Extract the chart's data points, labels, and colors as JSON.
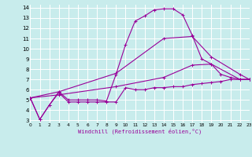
{
  "xlabel": "Windchill (Refroidissement éolien,°C)",
  "xlim": [
    0,
    23
  ],
  "ylim": [
    2.8,
    14.3
  ],
  "yticks": [
    3,
    4,
    5,
    6,
    7,
    8,
    9,
    10,
    11,
    12,
    13,
    14
  ],
  "xticks": [
    0,
    1,
    2,
    3,
    4,
    5,
    6,
    7,
    8,
    9,
    10,
    11,
    12,
    13,
    14,
    15,
    16,
    17,
    18,
    19,
    20,
    21,
    22,
    23
  ],
  "bg_color": "#c8ecec",
  "line_color": "#990099",
  "grid_color": "#ffffff",
  "lines": [
    {
      "x": [
        0,
        1,
        2,
        3,
        4,
        5,
        6,
        7,
        8,
        9,
        10,
        11,
        12,
        13,
        14,
        15,
        16,
        17,
        18,
        19,
        20,
        21,
        22,
        23
      ],
      "y": [
        5.2,
        3.1,
        4.5,
        5.7,
        4.8,
        4.8,
        4.8,
        4.8,
        4.8,
        4.8,
        6.2,
        6.0,
        6.0,
        6.2,
        6.2,
        6.3,
        6.3,
        6.5,
        6.6,
        6.7,
        6.8,
        7.0,
        7.0,
        7.0
      ]
    },
    {
      "x": [
        0,
        1,
        2,
        3,
        4,
        5,
        6,
        7,
        8,
        9,
        10,
        11,
        12,
        13,
        14,
        15,
        16,
        17,
        18,
        19,
        20,
        21,
        22,
        23
      ],
      "y": [
        5.2,
        3.1,
        4.5,
        5.8,
        5.0,
        5.0,
        5.0,
        5.0,
        4.9,
        7.5,
        10.4,
        12.7,
        13.2,
        13.8,
        13.9,
        13.9,
        13.3,
        11.3,
        9.0,
        8.5,
        7.5,
        7.2,
        7.0,
        7.0
      ]
    },
    {
      "x": [
        0,
        3,
        9,
        14,
        17,
        19,
        22,
        23
      ],
      "y": [
        5.2,
        5.8,
        7.6,
        11.0,
        11.2,
        9.2,
        7.5,
        7.0
      ]
    },
    {
      "x": [
        0,
        3,
        9,
        14,
        17,
        19,
        22,
        23
      ],
      "y": [
        5.2,
        5.5,
        6.3,
        7.2,
        8.4,
        8.5,
        7.0,
        7.0
      ]
    }
  ]
}
